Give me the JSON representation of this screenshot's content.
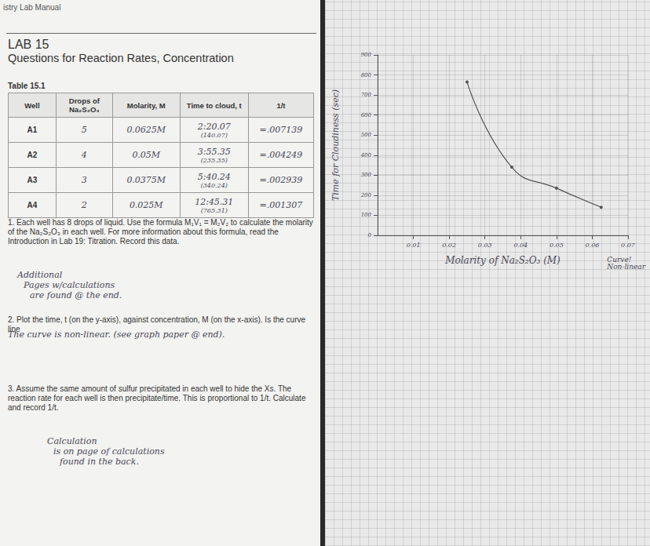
{
  "page": {
    "header": "istry Lab Manual",
    "lab": "LAB 15",
    "title": "Questions for Reaction Rates, Concentration",
    "table": {
      "caption": "Table 15.1",
      "header": [
        "Well",
        "Drops of Na₂S₂O₃",
        "Molarity, M",
        "Time to cloud, t",
        "1/t"
      ],
      "rows": [
        [
          "A1",
          "5",
          "0.0625M",
          [
            "2:20.07",
            "(140.07)"
          ],
          "=.007139"
        ],
        [
          "A2",
          "4",
          "0.05M",
          [
            "3:55.35",
            "(235.35)"
          ],
          "=.004249"
        ],
        [
          "A3",
          "3",
          "0.0375M",
          [
            "5:40.24",
            "(340.24)"
          ],
          "=.002939"
        ],
        [
          "A4",
          "2",
          "0.025M",
          [
            "12:45.31",
            "(765.31)"
          ],
          "=.001307"
        ]
      ]
    },
    "questions": [
      {
        "text": "1. Each well has 8 drops of liquid. Use the formula M₁V₁ = M₂V₂ to calculate the molarity of the Na₂S₂O₃ in each well. For more information about this formula, read the Introduction in Lab 19: Titration. Record this data.",
        "answer": [
          "Additional",
          "Pages w/calculations",
          "are found @ the end."
        ]
      },
      {
        "text": "2. Plot the time, t (on the y-axis), against concentration, M (on the x-axis). Is the curve line",
        "answer": [
          "The curve is non-linear. (see graph paper @ end)."
        ]
      },
      {
        "text": "3. Assume the same amount of sulfur precipitated in each well to hide the Xs. The reaction rate for each well is then precipitate/time. This is proportional to 1/t. Calculate and record 1/t.",
        "answer": [
          "Calculation",
          "is on page of calculations",
          "found in the back."
        ]
      }
    ]
  },
  "chart_data": {
    "type": "line",
    "x": [
      0.025,
      0.0375,
      0.05,
      0.0625
    ],
    "values": [
      765.31,
      340.24,
      235.35,
      140.07
    ],
    "x_label": "Molarity of Na₂S₂O₃ (M)",
    "y_label": "Time for Cloudiness (sec)",
    "annotation": "Curve! Non-linear",
    "xlim": [
      0,
      0.07
    ],
    "xticks": [
      0.01,
      0.02,
      0.03,
      0.04,
      0.05,
      0.06,
      0.07
    ],
    "ylim": [
      0,
      900
    ],
    "yticks": [
      0,
      100,
      200,
      300,
      400,
      500,
      600,
      700,
      800,
      900
    ],
    "grid": true,
    "color": "#555555",
    "marker": "circle",
    "line_style": "solid"
  }
}
